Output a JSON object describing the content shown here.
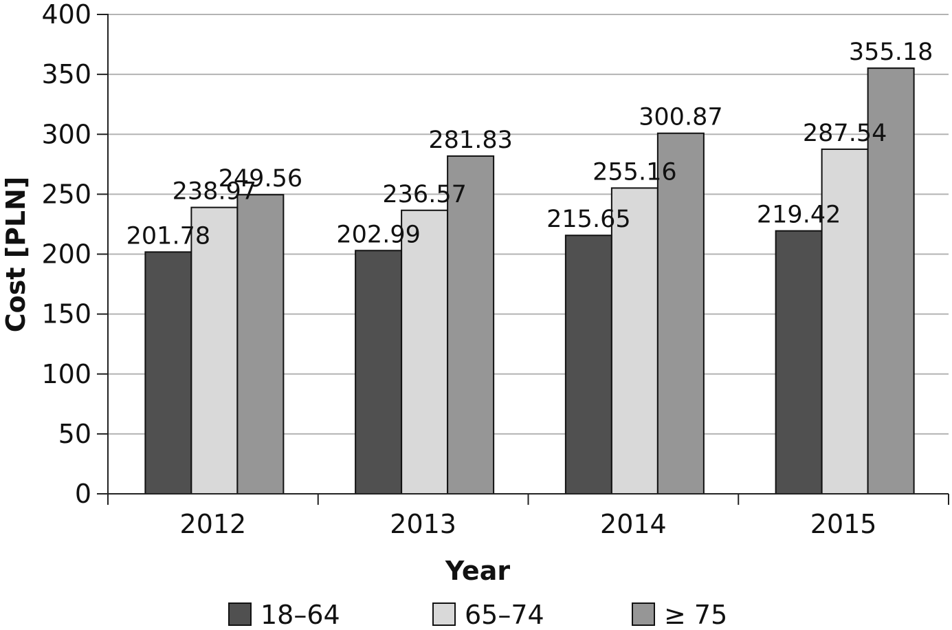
{
  "chart_data": {
    "type": "bar",
    "categories": [
      "2012",
      "2013",
      "2014",
      "2015"
    ],
    "series": [
      {
        "name": "18–64",
        "values": [
          201.78,
          202.99,
          215.65,
          219.42
        ],
        "color": "#505050"
      },
      {
        "name": "65–74",
        "values": [
          238.97,
          236.57,
          255.16,
          287.54
        ],
        "color": "#d9d9d9"
      },
      {
        "name": "≥ 75",
        "values": [
          249.56,
          281.83,
          300.87,
          355.18
        ],
        "color": "#969696"
      }
    ],
    "value_labels": [
      [
        "201.78",
        "202.99",
        "215.65",
        "219.42"
      ],
      [
        "238.97",
        "236.57",
        "255.16",
        "287.54"
      ],
      [
        "249.56",
        "281.83",
        "300.87",
        "355.18"
      ]
    ],
    "title": "",
    "xlabel": "Year",
    "ylabel": "Cost [PLN]",
    "ylim": [
      0,
      400
    ],
    "yticks": [
      "0",
      "50",
      "100",
      "150",
      "200",
      "250",
      "300",
      "350",
      "400"
    ],
    "grid": true,
    "legend": "bottom",
    "colors": {
      "grid": "#b3b3b3",
      "axis": "#222222",
      "bar_outline": "#111111"
    }
  }
}
